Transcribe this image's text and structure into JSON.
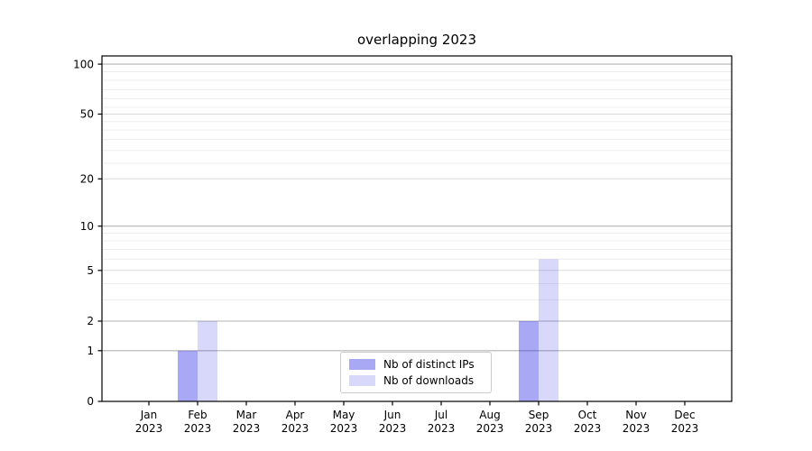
{
  "chart_data": {
    "type": "bar",
    "title": "overlapping 2023",
    "categories": [
      "Jan",
      "Feb",
      "Mar",
      "Apr",
      "May",
      "Jun",
      "Jul",
      "Aug",
      "Sep",
      "Oct",
      "Nov",
      "Dec"
    ],
    "x_tick_year": "2023",
    "series": [
      {
        "name": "Nb of distinct IPs",
        "color": "rgba(25,25,230,0.38)",
        "values": [
          0,
          1,
          0,
          0,
          0,
          0,
          0,
          0,
          2,
          0,
          0,
          0
        ]
      },
      {
        "name": "Nb of downloads",
        "color": "rgba(25,25,230,0.17)",
        "values": [
          0,
          2,
          0,
          0,
          0,
          0,
          0,
          0,
          6,
          0,
          0,
          0
        ]
      }
    ],
    "yscale": "log1p",
    "y_axis": {
      "tick_labels": [
        "0",
        "1",
        "2",
        "5",
        "10",
        "20",
        "50",
        "100"
      ],
      "major_ticks": [
        0,
        1,
        2,
        5,
        10,
        20,
        50,
        100
      ],
      "grid_dark_values": [
        1,
        2,
        10,
        100
      ],
      "grid_mid_values": [
        5,
        20,
        50
      ],
      "grid_minor_values": [
        3,
        4,
        6,
        7,
        8,
        9,
        25,
        30,
        35,
        40,
        45,
        55,
        62,
        70,
        80,
        90
      ],
      "ylim": [
        0,
        112
      ]
    },
    "legend": {
      "position": "lower center"
    },
    "grid": true
  },
  "colors": {
    "background": "#ffffff",
    "axis": "#000000",
    "tick_label": "#000000",
    "grid_dark": "#b3b3b3",
    "grid_mid": "#d9d9d9",
    "grid_minor": "#ececec",
    "legend_border": "#cccccc"
  }
}
